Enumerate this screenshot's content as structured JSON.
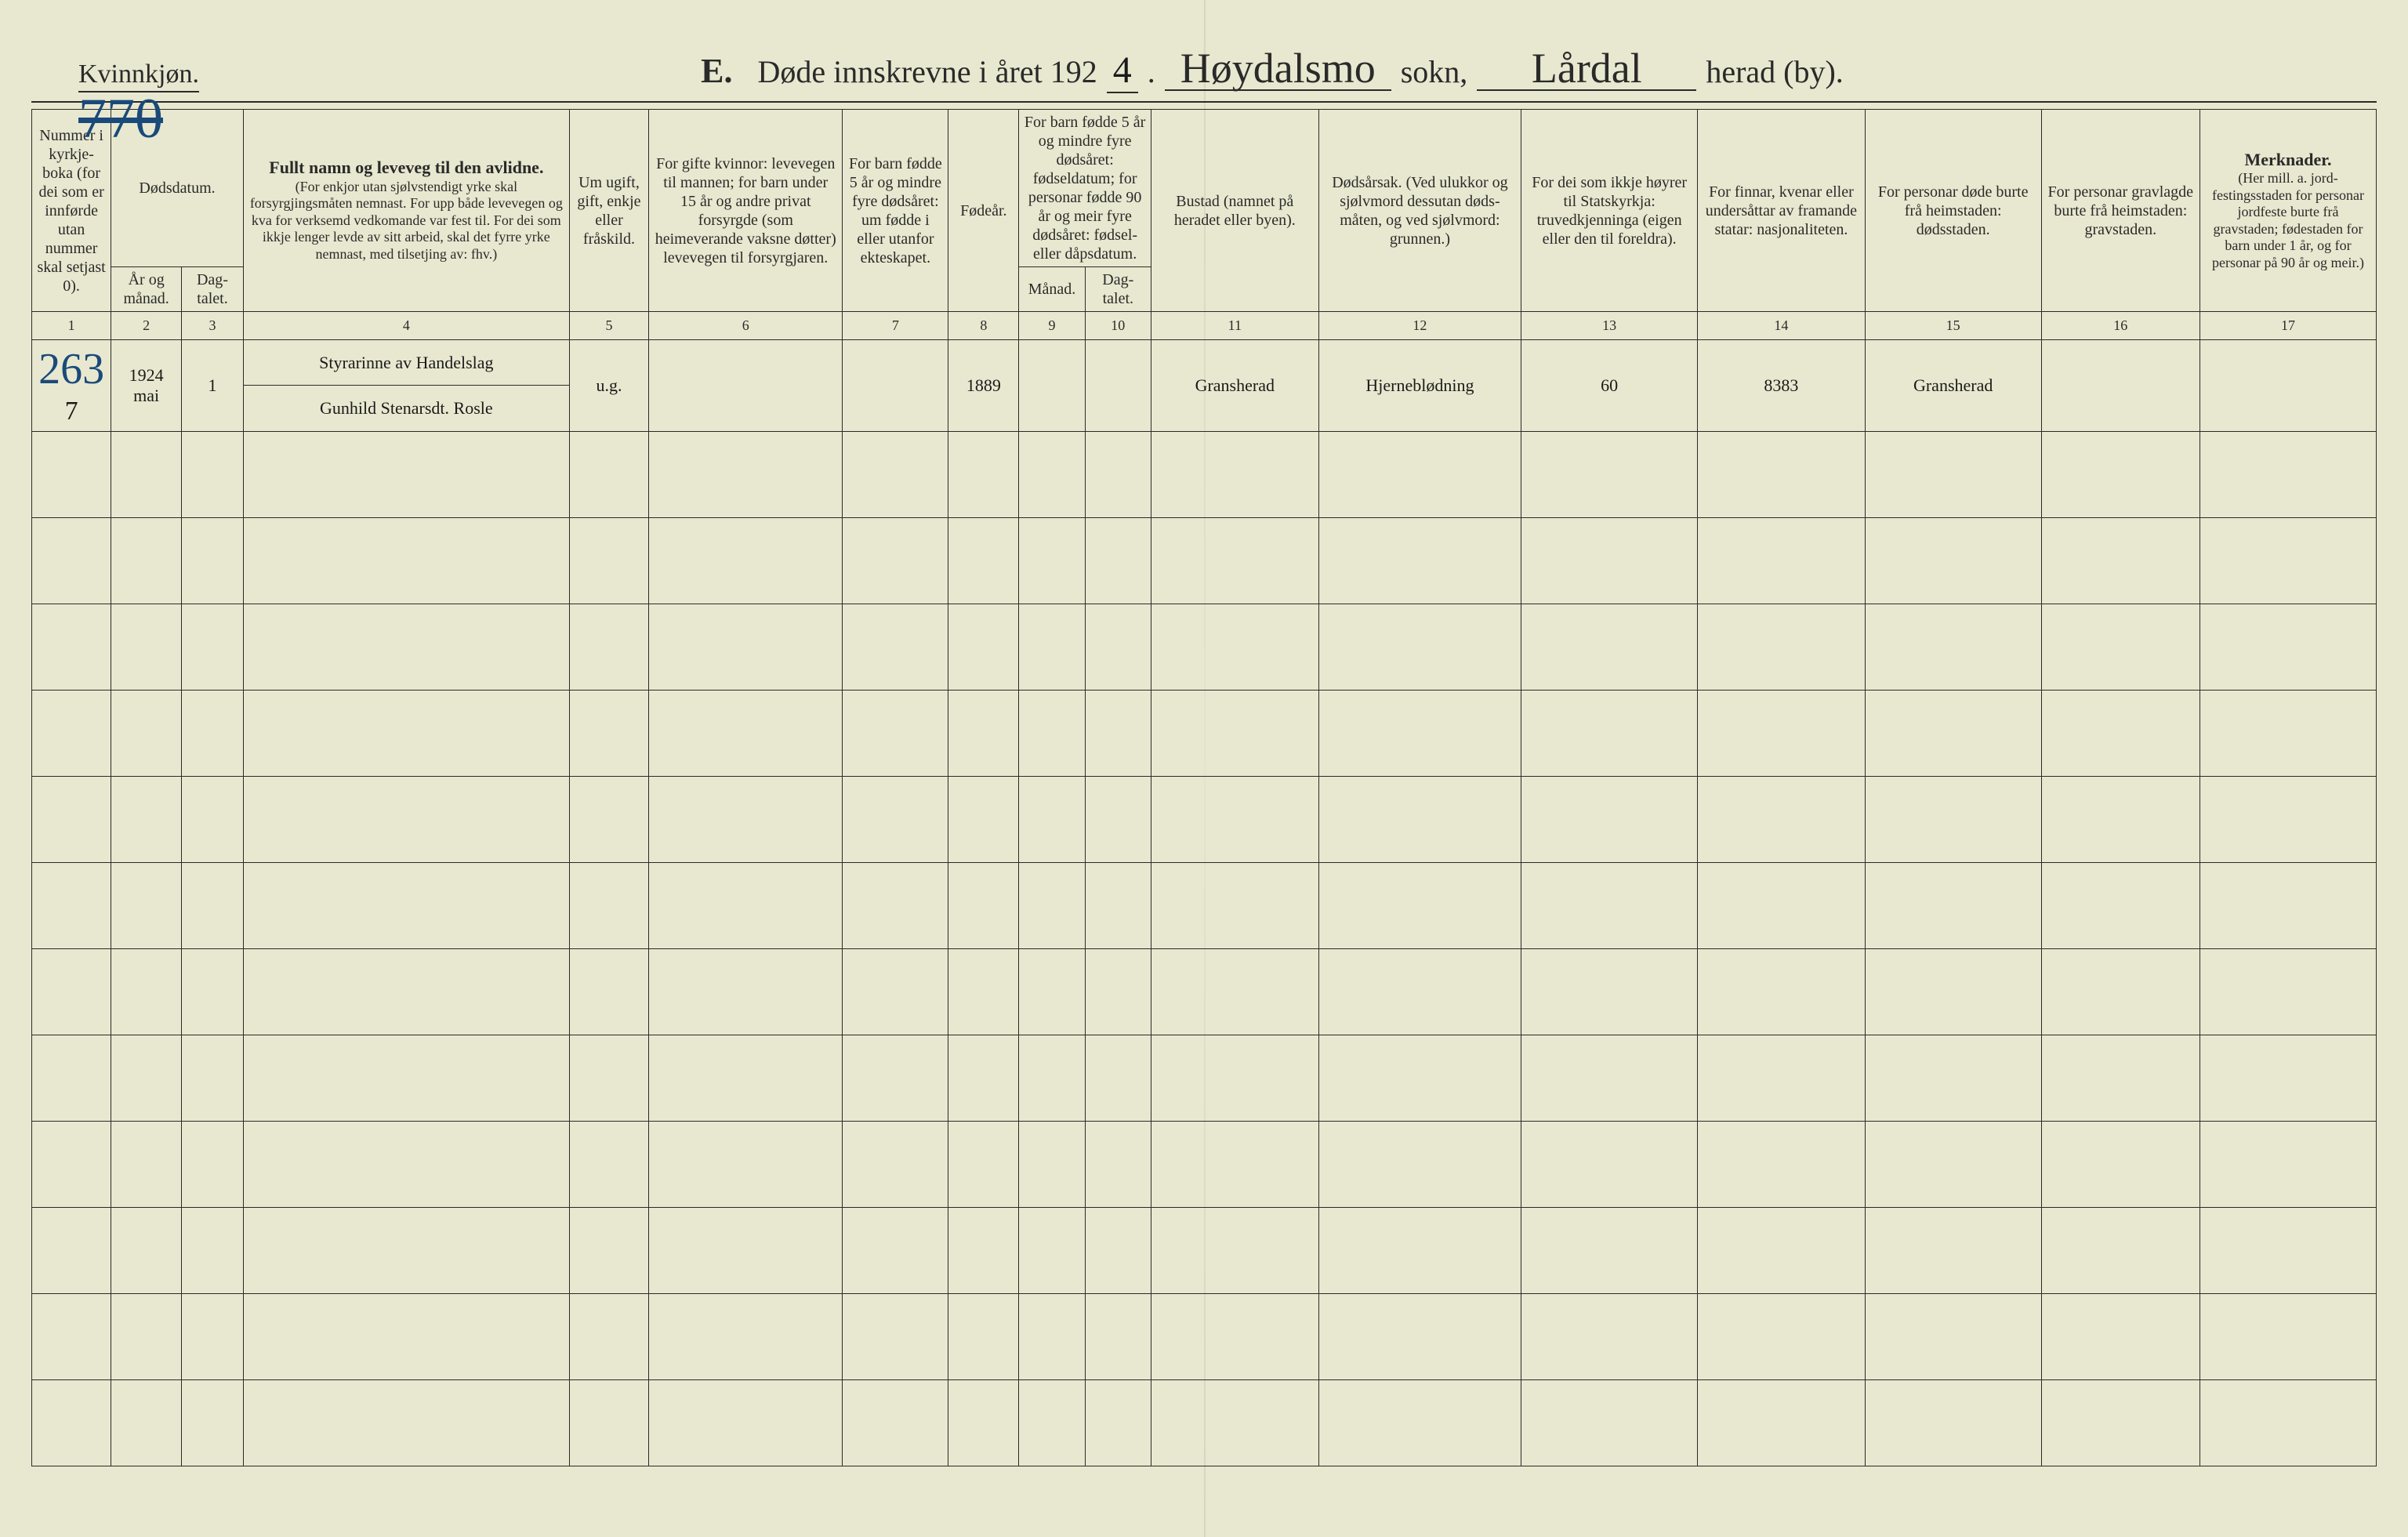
{
  "meta": {
    "gender_label": "Kvinnkjøn.",
    "form_letter": "E.",
    "title_printed": "Døde innskrevne i året 192",
    "year_suffix": "4",
    "sokn_label": "sokn,",
    "sokn_value": "Høydalsmo",
    "herad_label": "herad (by).",
    "herad_value": "Lårdal",
    "hand_page_number": "770"
  },
  "columns": {
    "c1": "Nummer i kyrkje­boka (for dei som er innførde utan nummer skal set­jast 0).",
    "c2_group": "Dødsdatum.",
    "c2a": "År og månad.",
    "c2b": "Dag­talet.",
    "c4_title": "Fullt namn og leveveg til den avlidne.",
    "c4_sub": "(For enkjor utan sjølvstendigt yrke skal forsyrgjingsmåten nemnast. For upp både levevegen og kva for verksemd ved­komande var fest til. For dei som ikkje lenger levde av sitt arbeid, skal det fyrre yrke nemnast, med tilsetjing av: fhv.)",
    "c5": "Um ugift, gift, enkje eller fråskild.",
    "c6": "For gifte kvinnor: levevegen til mannen; for barn under 15 år og andre privat forsyrgde (som heimeverande vaksne døtter) levevegen til forsyrgjaren.",
    "c7": "For barn fødde 5 år og mindre fyre døds­året: um fødde i eller utanfor ekte­skapet.",
    "c8": "Føde­år.",
    "c9_group": "For barn fødde 5 år og mindre fyre dødsåret: fødseldatum; for personar fødde 90 år og meir fyre dødsåret: fødsel- eller dåpsdatum.",
    "c9a": "Månad.",
    "c9b": "Dag­talet.",
    "c11": "Bustad (namnet på heradet eller byen).",
    "c12": "Dødsårsak. (Ved ulukkor og sjølv­mord dessutan døds­måten, og ved sjølv­mord: grunnen.)",
    "c13": "For dei som ikkje høyrer til Statskyrkja: truvedkjenninga (eigen eller den til foreldra).",
    "c14": "For finnar, kvenar eller undersåttar av framande statar: nasjonaliteten.",
    "c15": "For personar døde burte frå heimstaden: dødsstaden.",
    "c16": "For personar gravlagde burte frå heimstaden: gravstaden.",
    "c17_title": "Merknader.",
    "c17_sub": "(Her mill. a. jord­festingsstaden for personar jordfeste burte frå gravstaden; fødestaden for barn under 1 år, og for personar på 90 år og meir.)"
  },
  "colnums": [
    "1",
    "2",
    "3",
    "4",
    "5",
    "6",
    "7",
    "8",
    "9",
    "10",
    "11",
    "12",
    "13",
    "14",
    "15",
    "16",
    "17"
  ],
  "rows": [
    {
      "num_blue": "263",
      "num_side": "7",
      "year_month": "1924 mai",
      "day": "1",
      "name_top": "Styrarinne av Handelslag",
      "name_bot": "Gunhild Stenarsdt. Rosle",
      "status": "u.g.",
      "birth_year": "1889",
      "bustad": "Gransherad",
      "cause": "Hjerneblødning",
      "col13": "60",
      "col14": "8383",
      "col15": "Gransherad"
    }
  ],
  "empty_row_count": 12,
  "colors": {
    "paper": "#e8e8d0",
    "ink": "#2a2a2a",
    "blue_ink": "#1a4a7a"
  }
}
